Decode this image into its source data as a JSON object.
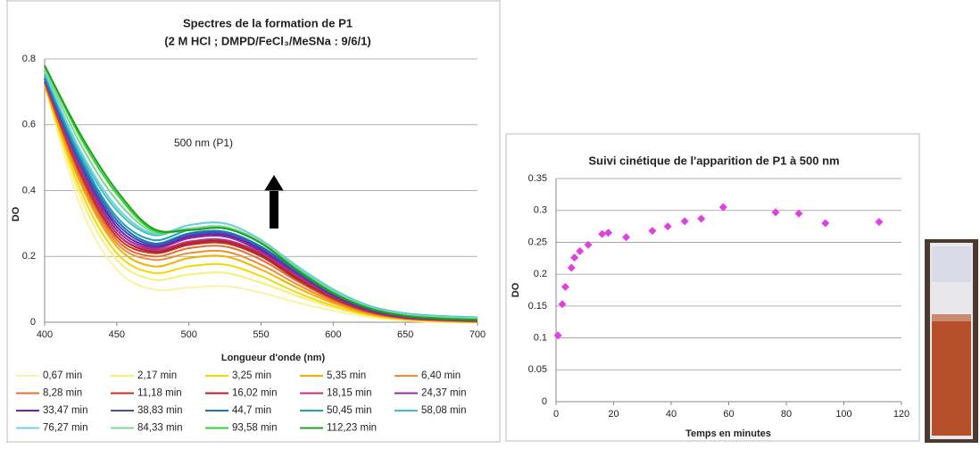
{
  "chart_data": [
    {
      "type": "line",
      "title": "Spectres de la formation de P1",
      "subtitle": "(2 M HCl ; DMPD/FeCl₃/MeSNa : 9/6/1)",
      "annotation": "500 nm (P1)",
      "xlabel": "Longueur d'onde (nm)",
      "ylabel": "DO",
      "xlim": [
        400,
        700
      ],
      "xticks": [
        400,
        450,
        500,
        550,
        600,
        650,
        700
      ],
      "ylim": [
        0,
        0.8
      ],
      "yticks": [
        0,
        0.2,
        0.4,
        0.6,
        0.8
      ],
      "grid": true,
      "x": [
        400,
        425,
        450,
        475,
        500,
        525,
        550,
        575,
        600,
        625,
        650,
        675,
        700
      ],
      "series": [
        {
          "name": "0,67 min",
          "color": "#fbf3a4",
          "values": [
            0.72,
            0.35,
            0.16,
            0.1,
            0.105,
            0.11,
            0.09,
            0.06,
            0.035,
            0.015,
            0.005,
            0,
            0
          ]
        },
        {
          "name": "2,17 min",
          "color": "#f8ee7c",
          "values": [
            0.72,
            0.38,
            0.19,
            0.13,
            0.145,
            0.15,
            0.12,
            0.08,
            0.045,
            0.02,
            0.008,
            0.002,
            0
          ]
        },
        {
          "name": "3,25 min",
          "color": "#f5d800",
          "values": [
            0.72,
            0.4,
            0.21,
            0.15,
            0.17,
            0.175,
            0.14,
            0.09,
            0.05,
            0.022,
            0.008,
            0.003,
            0
          ]
        },
        {
          "name": "5,35 min",
          "color": "#f2b000",
          "values": [
            0.72,
            0.42,
            0.23,
            0.17,
            0.195,
            0.2,
            0.16,
            0.105,
            0.058,
            0.025,
            0.01,
            0.004,
            0.001
          ]
        },
        {
          "name": "6,40 min",
          "color": "#f08c30",
          "values": [
            0.73,
            0.43,
            0.24,
            0.19,
            0.21,
            0.215,
            0.175,
            0.115,
            0.063,
            0.028,
            0.011,
            0.005,
            0.002
          ]
        },
        {
          "name": "8,28 min",
          "color": "#e07030",
          "values": [
            0.73,
            0.44,
            0.25,
            0.2,
            0.225,
            0.23,
            0.19,
            0.125,
            0.068,
            0.03,
            0.012,
            0.006,
            0.003
          ]
        },
        {
          "name": "11,18 min",
          "color": "#c03020",
          "values": [
            0.73,
            0.45,
            0.26,
            0.21,
            0.235,
            0.24,
            0.2,
            0.13,
            0.072,
            0.032,
            0.013,
            0.007,
            0.003
          ]
        },
        {
          "name": "16,02 min",
          "color": "#b02030",
          "values": [
            0.73,
            0.46,
            0.27,
            0.215,
            0.24,
            0.245,
            0.205,
            0.135,
            0.075,
            0.034,
            0.014,
            0.008,
            0.004
          ]
        },
        {
          "name": "18,15 min",
          "color": "#c03070",
          "values": [
            0.73,
            0.46,
            0.27,
            0.22,
            0.245,
            0.25,
            0.21,
            0.14,
            0.078,
            0.035,
            0.015,
            0.008,
            0.004
          ]
        },
        {
          "name": "24,37 min",
          "color": "#9030a0",
          "values": [
            0.74,
            0.47,
            0.28,
            0.225,
            0.255,
            0.26,
            0.215,
            0.145,
            0.08,
            0.036,
            0.016,
            0.009,
            0.005
          ]
        },
        {
          "name": "33,47 min",
          "color": "#7020a0",
          "values": [
            0.74,
            0.48,
            0.29,
            0.23,
            0.26,
            0.265,
            0.22,
            0.15,
            0.082,
            0.038,
            0.017,
            0.01,
            0.006
          ]
        },
        {
          "name": "38,83 min",
          "color": "#4050b0",
          "values": [
            0.74,
            0.48,
            0.3,
            0.235,
            0.265,
            0.27,
            0.225,
            0.152,
            0.085,
            0.04,
            0.018,
            0.011,
            0.007
          ]
        },
        {
          "name": "44,7 min",
          "color": "#2070c0",
          "values": [
            0.74,
            0.49,
            0.31,
            0.24,
            0.27,
            0.275,
            0.23,
            0.155,
            0.088,
            0.042,
            0.02,
            0.013,
            0.009
          ]
        },
        {
          "name": "50,45 min",
          "color": "#20a0b0",
          "values": [
            0.75,
            0.5,
            0.32,
            0.25,
            0.28,
            0.285,
            0.24,
            0.16,
            0.092,
            0.045,
            0.023,
            0.015,
            0.011
          ]
        },
        {
          "name": "58,08 min",
          "color": "#40c0c0",
          "values": [
            0.76,
            0.51,
            0.34,
            0.265,
            0.295,
            0.3,
            0.25,
            0.17,
            0.1,
            0.05,
            0.027,
            0.019,
            0.015
          ]
        },
        {
          "name": "76,27 min",
          "color": "#70d0e0",
          "values": [
            0.76,
            0.52,
            0.35,
            0.27,
            0.295,
            0.3,
            0.25,
            0.168,
            0.098,
            0.048,
            0.025,
            0.017,
            0.013
          ]
        },
        {
          "name": "84,33 min",
          "color": "#80d890",
          "values": [
            0.77,
            0.54,
            0.37,
            0.275,
            0.285,
            0.29,
            0.245,
            0.163,
            0.093,
            0.045,
            0.022,
            0.014,
            0.01
          ]
        },
        {
          "name": "93,58 min",
          "color": "#30d030",
          "values": [
            0.78,
            0.56,
            0.39,
            0.28,
            0.28,
            0.285,
            0.24,
            0.16,
            0.09,
            0.043,
            0.02,
            0.012,
            0.008
          ]
        },
        {
          "name": "112,23 min",
          "color": "#20a020",
          "values": [
            0.78,
            0.57,
            0.4,
            0.285,
            0.28,
            0.285,
            0.24,
            0.158,
            0.088,
            0.042,
            0.019,
            0.011,
            0.007
          ]
        }
      ]
    },
    {
      "type": "scatter",
      "title": "Suivi cinétique de l'apparition de P1 à 500 nm",
      "xlabel": "Temps en minutes",
      "ylabel": "DO",
      "xlim": [
        0,
        120
      ],
      "xticks": [
        0,
        20,
        40,
        60,
        80,
        100,
        120
      ],
      "ylim": [
        0,
        0.35
      ],
      "yticks": [
        0,
        0.05,
        0.1,
        0.15,
        0.2,
        0.25,
        0.3,
        0.35
      ],
      "grid": true,
      "color": "#e040e0",
      "x": [
        0.67,
        2.17,
        3.25,
        5.35,
        6.4,
        8.28,
        11.18,
        16.02,
        18.15,
        24.37,
        33.47,
        38.83,
        44.7,
        50.45,
        58.08,
        76.27,
        84.33,
        93.58,
        112.23
      ],
      "values": [
        0.104,
        0.153,
        0.18,
        0.21,
        0.226,
        0.236,
        0.246,
        0.263,
        0.265,
        0.258,
        0.268,
        0.275,
        0.283,
        0.287,
        0.305,
        0.297,
        0.295,
        0.28,
        0.282
      ]
    }
  ]
}
